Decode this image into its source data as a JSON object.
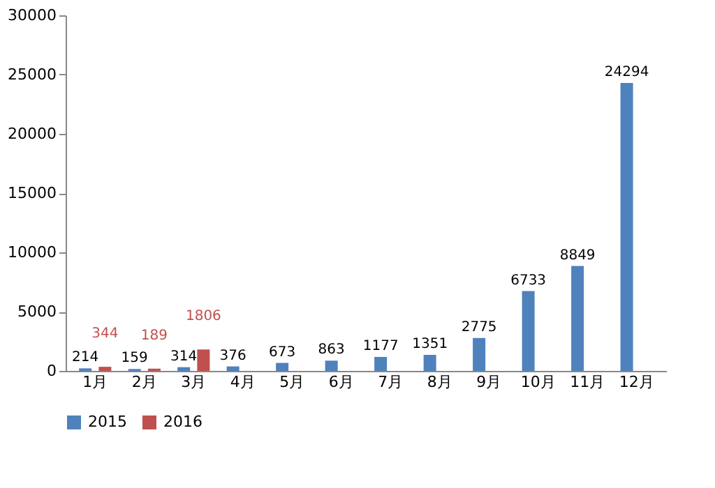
{
  "chart_data": {
    "type": "bar",
    "categories": [
      "1月",
      "2月",
      "3月",
      "4月",
      "5月",
      "6月",
      "7月",
      "8月",
      "9月",
      "10月",
      "11月",
      "12月"
    ],
    "series": [
      {
        "name": "2015",
        "color": "#4f81bd",
        "values": [
          214,
          159,
          314,
          376,
          673,
          863,
          1177,
          1351,
          2775,
          6733,
          8849,
          24294
        ]
      },
      {
        "name": "2016",
        "color": "#c0504d",
        "values": [
          344,
          189,
          1806,
          null,
          null,
          null,
          null,
          null,
          null,
          null,
          null,
          null
        ]
      }
    ],
    "ylim": [
      0,
      30000
    ],
    "yticks": [
      0,
      5000,
      10000,
      15000,
      20000,
      25000,
      30000
    ],
    "grid": false,
    "legend": "bottom",
    "data_labels": true
  }
}
